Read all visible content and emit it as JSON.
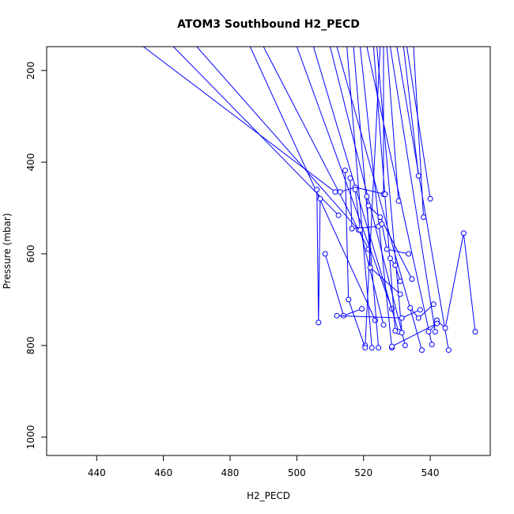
{
  "chart_data": {
    "type": "line",
    "title": "ATOM3 Southbound H2_PECD",
    "xlabel": "H2_PECD",
    "ylabel": "Pressure (mbar)",
    "xlim": [
      425,
      558
    ],
    "ylim": [
      1040,
      148
    ],
    "y_reversed": true,
    "grid": false,
    "legend": "none",
    "color": "#0000ff",
    "x_ticks": [
      440,
      460,
      480,
      500,
      520,
      540
    ],
    "y_ticks": [
      200,
      400,
      600,
      800,
      1000
    ],
    "series": [
      {
        "x": [
          454,
          511.5
        ],
        "y": [
          148,
          465
        ]
      },
      {
        "x": [
          463,
          512.5
        ],
        "y": [
          148,
          516
        ]
      },
      {
        "x": [
          470,
          518.5
        ],
        "y": [
          148,
          548
        ]
      },
      {
        "x": [
          486,
          523.5
        ],
        "y": [
          148,
          745
        ]
      },
      {
        "x": [
          490,
          521.5
        ],
        "y": [
          148,
          590
        ]
      },
      {
        "x": [
          500,
          528.5
        ],
        "y": [
          148,
          720
        ]
      },
      {
        "x": [
          505,
          530.5
        ],
        "y": [
          148,
          770
        ]
      },
      {
        "x": [
          510,
          532.5
        ],
        "y": [
          148,
          800
        ]
      },
      {
        "x": [
          512,
          537.5
        ],
        "y": [
          148,
          810
        ]
      },
      {
        "x": [
          515,
          522.5
        ],
        "y": [
          148,
          805
        ]
      },
      {
        "x": [
          517,
          524.5
        ],
        "y": [
          148,
          805
        ]
      },
      {
        "x": [
          519,
          528.5
        ],
        "y": [
          148,
          805
        ]
      },
      {
        "x": [
          521,
          540.5
        ],
        "y": [
          148,
          798
        ]
      },
      {
        "x": [
          523,
          529.5
        ],
        "y": [
          148,
          768
        ]
      },
      {
        "x": [
          524,
          531.5
        ],
        "y": [
          148,
          772
        ]
      },
      {
        "x": [
          525,
          520.5
        ],
        "y": [
          148,
          800
        ]
      },
      {
        "x": [
          526,
          526.0
        ],
        "y": [
          148,
          470
        ]
      },
      {
        "x": [
          527,
          530.5
        ],
        "y": [
          148,
          485
        ]
      },
      {
        "x": [
          528,
          541.5
        ],
        "y": [
          148,
          770
        ]
      },
      {
        "x": [
          530,
          545.5
        ],
        "y": [
          148,
          810
        ]
      },
      {
        "x": [
          532,
          536.5
        ],
        "y": [
          148,
          430
        ]
      },
      {
        "x": [
          533,
          540.0
        ],
        "y": [
          148,
          480
        ]
      },
      {
        "x": [
          535,
          538.0
        ],
        "y": [
          148,
          520
        ]
      },
      {
        "x": [
          506.0,
          506.5,
          507.0
        ],
        "y": [
          460,
          750,
          480
        ]
      },
      {
        "x": [
          508.5,
          514.0,
          519.5
        ],
        "y": [
          600,
          735,
          720
        ]
      },
      {
        "x": [
          513.0,
          517.5,
          526.5
        ],
        "y": [
          465,
          455,
          470
        ]
      },
      {
        "x": [
          514.5,
          515.5,
          520.5
        ],
        "y": [
          418,
          700,
          805
        ]
      },
      {
        "x": [
          516.0,
          516.5,
          524.5
        ],
        "y": [
          435,
          545,
          540
        ]
      },
      {
        "x": [
          517.5,
          519.0,
          526.0
        ],
        "y": [
          460,
          548,
          755
        ]
      },
      {
        "x": [
          521.0,
          522.0,
          531.0
        ],
        "y": [
          475,
          630,
          688
        ]
      },
      {
        "x": [
          521.5,
          525.0,
          534.5
        ],
        "y": [
          495,
          520,
          655
        ]
      },
      {
        "x": [
          525.5,
          527.0,
          533.5
        ],
        "y": [
          535,
          590,
          600
        ]
      },
      {
        "x": [
          528.0,
          529.5,
          531.0
        ],
        "y": [
          610,
          625,
          660
        ]
      },
      {
        "x": [
          534.0,
          536.5,
          541.0
        ],
        "y": [
          718,
          740,
          710
        ]
      },
      {
        "x": [
          542.0,
          544.5,
          550.0,
          553.5
        ],
        "y": [
          745,
          762,
          555,
          770
        ]
      },
      {
        "x": [
          539.5,
          542.0,
          528.5
        ],
        "y": [
          770,
          752,
          802
        ]
      },
      {
        "x": [
          512.0,
          531.5,
          537.0
        ],
        "y": [
          735,
          740,
          722
        ]
      }
    ]
  }
}
